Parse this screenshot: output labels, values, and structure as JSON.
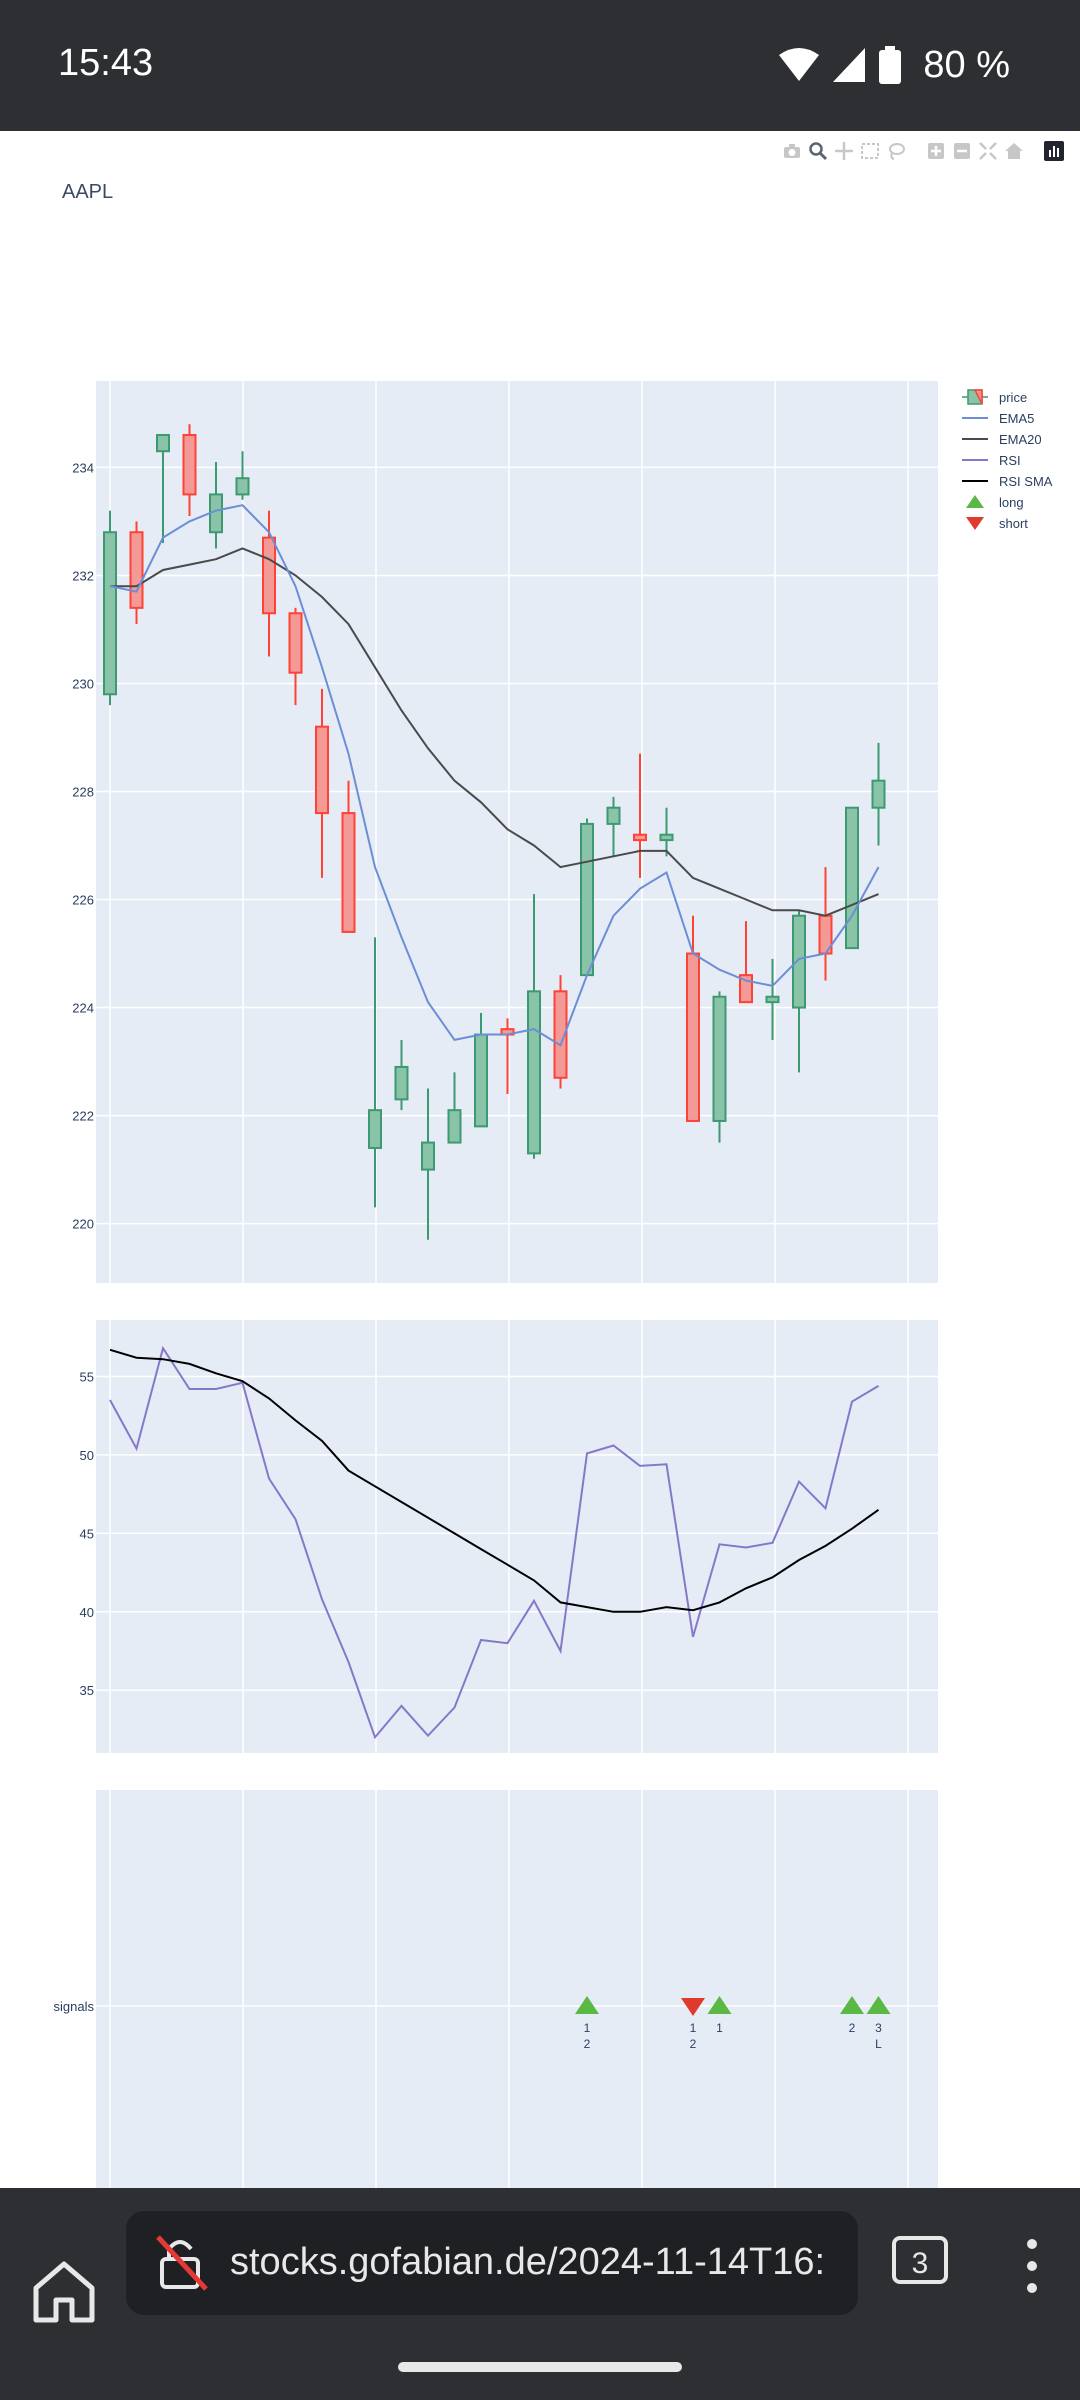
{
  "status_bar": {
    "time": "15:43",
    "battery": "80 %",
    "icons": [
      "wifi-icon",
      "signal-icon",
      "battery-icon"
    ]
  },
  "browser": {
    "url": "stocks.gofabian.de/2024-11-14T16:",
    "tab_count": "3",
    "icons": [
      "home-icon",
      "lock-off-icon",
      "tabs-icon",
      "more-vert-icon"
    ]
  },
  "chart": {
    "title": "AAPL",
    "modebar_icons": [
      "camera-icon",
      "zoom-icon",
      "pan-icon",
      "box-select-icon",
      "lasso-icon",
      "zoom-in-icon",
      "zoom-out-icon",
      "autoscale-icon",
      "home-icon",
      "plotly-logo-icon"
    ]
  },
  "colors": {
    "plot_bg": "#e5ecf6",
    "increasing": "#3d9970",
    "decreasing": "#ff4136",
    "ema5": "#6c8ed6",
    "ema20": "#4a4a4a",
    "rsi": "#8678c9",
    "rsi_sma": "#000000",
    "long": "#5ab845",
    "short": "#e03a2e"
  },
  "chart_data": [
    {
      "type": "candlestick",
      "name": "price-panel",
      "yticks": [
        220,
        222,
        224,
        226,
        228,
        230,
        232,
        234
      ],
      "ylim": [
        218.9,
        235.6
      ],
      "legend": [
        "price",
        "EMA5",
        "EMA20",
        "RSI",
        "RSI SMA",
        "long",
        "short"
      ],
      "legend_position": "top-right",
      "candles": [
        {
          "o": 229.8,
          "h": 233.2,
          "l": 229.6,
          "c": 232.8
        },
        {
          "o": 232.8,
          "h": 233.0,
          "l": 231.1,
          "c": 231.4
        },
        {
          "o": 234.3,
          "h": 234.6,
          "l": 232.6,
          "c": 234.6
        },
        {
          "o": 234.6,
          "h": 234.8,
          "l": 233.1,
          "c": 233.5
        },
        {
          "o": 232.8,
          "h": 234.1,
          "l": 232.5,
          "c": 233.5
        },
        {
          "o": 233.5,
          "h": 234.3,
          "l": 233.4,
          "c": 233.8
        },
        {
          "o": 232.7,
          "h": 233.2,
          "l": 230.5,
          "c": 231.3
        },
        {
          "o": 231.3,
          "h": 231.4,
          "l": 229.6,
          "c": 230.2
        },
        {
          "o": 229.2,
          "h": 229.9,
          "l": 226.4,
          "c": 227.6
        },
        {
          "o": 227.6,
          "h": 228.2,
          "l": 225.4,
          "c": 225.4
        },
        {
          "o": 221.4,
          "h": 225.3,
          "l": 220.3,
          "c": 222.1
        },
        {
          "o": 222.3,
          "h": 223.4,
          "l": 222.1,
          "c": 222.9
        },
        {
          "o": 221.0,
          "h": 222.5,
          "l": 219.7,
          "c": 221.5
        },
        {
          "o": 221.5,
          "h": 222.8,
          "l": 221.5,
          "c": 222.1
        },
        {
          "o": 221.8,
          "h": 223.9,
          "l": 221.8,
          "c": 223.5
        },
        {
          "o": 223.6,
          "h": 223.8,
          "l": 222.4,
          "c": 223.5
        },
        {
          "o": 221.3,
          "h": 226.1,
          "l": 221.2,
          "c": 224.3
        },
        {
          "o": 224.3,
          "h": 224.6,
          "l": 222.5,
          "c": 222.7
        },
        {
          "o": 224.6,
          "h": 227.5,
          "l": 224.6,
          "c": 227.4
        },
        {
          "o": 227.4,
          "h": 227.9,
          "l": 226.8,
          "c": 227.7
        },
        {
          "o": 227.2,
          "h": 228.7,
          "l": 226.4,
          "c": 227.1
        },
        {
          "o": 227.1,
          "h": 227.7,
          "l": 226.8,
          "c": 227.2
        },
        {
          "o": 225.0,
          "h": 225.7,
          "l": 221.9,
          "c": 221.9
        },
        {
          "o": 221.9,
          "h": 224.3,
          "l": 221.5,
          "c": 224.2
        },
        {
          "o": 224.6,
          "h": 225.6,
          "l": 224.1,
          "c": 224.1
        },
        {
          "o": 224.1,
          "h": 224.9,
          "l": 223.4,
          "c": 224.2
        },
        {
          "o": 224.0,
          "h": 225.8,
          "l": 222.8,
          "c": 225.7
        },
        {
          "o": 225.7,
          "h": 226.6,
          "l": 224.5,
          "c": 225.0
        },
        {
          "o": 225.1,
          "h": 227.7,
          "l": 225.1,
          "c": 227.7
        },
        {
          "o": 227.7,
          "h": 228.9,
          "l": 227.0,
          "c": 228.2
        }
      ],
      "ema5": [
        231.8,
        231.7,
        232.7,
        233.0,
        233.2,
        233.3,
        232.8,
        231.8,
        230.3,
        228.7,
        226.6,
        225.3,
        224.1,
        223.4,
        223.5,
        223.5,
        223.6,
        223.3,
        224.6,
        225.7,
        226.2,
        226.5,
        225.0,
        224.7,
        224.5,
        224.4,
        224.9,
        225.0,
        225.7,
        226.6
      ],
      "ema20": [
        231.8,
        231.8,
        232.1,
        232.2,
        232.3,
        232.5,
        232.3,
        232.0,
        231.6,
        231.1,
        230.3,
        229.5,
        228.8,
        228.2,
        227.8,
        227.3,
        227.0,
        226.6,
        226.7,
        226.8,
        226.9,
        226.9,
        226.4,
        226.2,
        226.0,
        225.8,
        225.8,
        225.7,
        225.9,
        226.1
      ]
    },
    {
      "type": "line",
      "name": "rsi-panel",
      "yticks": [
        35,
        40,
        45,
        50,
        55
      ],
      "ylim": [
        31,
        58.6
      ],
      "series": [
        {
          "name": "RSI",
          "values": [
            53.5,
            50.4,
            56.8,
            54.2,
            54.2,
            54.6,
            48.5,
            45.9,
            40.8,
            36.8,
            32.0,
            34.0,
            32.1,
            33.9,
            38.2,
            38.0,
            40.7,
            37.5,
            50.1,
            50.6,
            49.3,
            49.4,
            38.4,
            44.3,
            44.1,
            44.4,
            48.3,
            46.6,
            53.4,
            54.4
          ]
        },
        {
          "name": "RSI SMA",
          "values": [
            56.7,
            56.2,
            56.1,
            55.8,
            55.2,
            54.7,
            53.6,
            52.2,
            50.9,
            49.0,
            48.0,
            47.0,
            46.0,
            45.0,
            44.0,
            43.0,
            42.0,
            40.6,
            40.3,
            40.0,
            40.0,
            40.3,
            40.1,
            40.6,
            41.5,
            42.2,
            43.3,
            44.2,
            45.3,
            46.5
          ]
        }
      ]
    },
    {
      "type": "scatter",
      "name": "signals-panel",
      "ylabel": "signals",
      "markers": [
        {
          "x": 18,
          "kind": "long",
          "line1": "1",
          "line2": "2"
        },
        {
          "x": 22,
          "kind": "short",
          "line1": "1",
          "line2": "2"
        },
        {
          "x": 23,
          "kind": "long",
          "line1": "1",
          "line2": ""
        },
        {
          "x": 28,
          "kind": "long",
          "line1": "2",
          "line2": ""
        },
        {
          "x": 29,
          "kind": "long",
          "line1": "3",
          "line2": "L"
        }
      ]
    }
  ]
}
